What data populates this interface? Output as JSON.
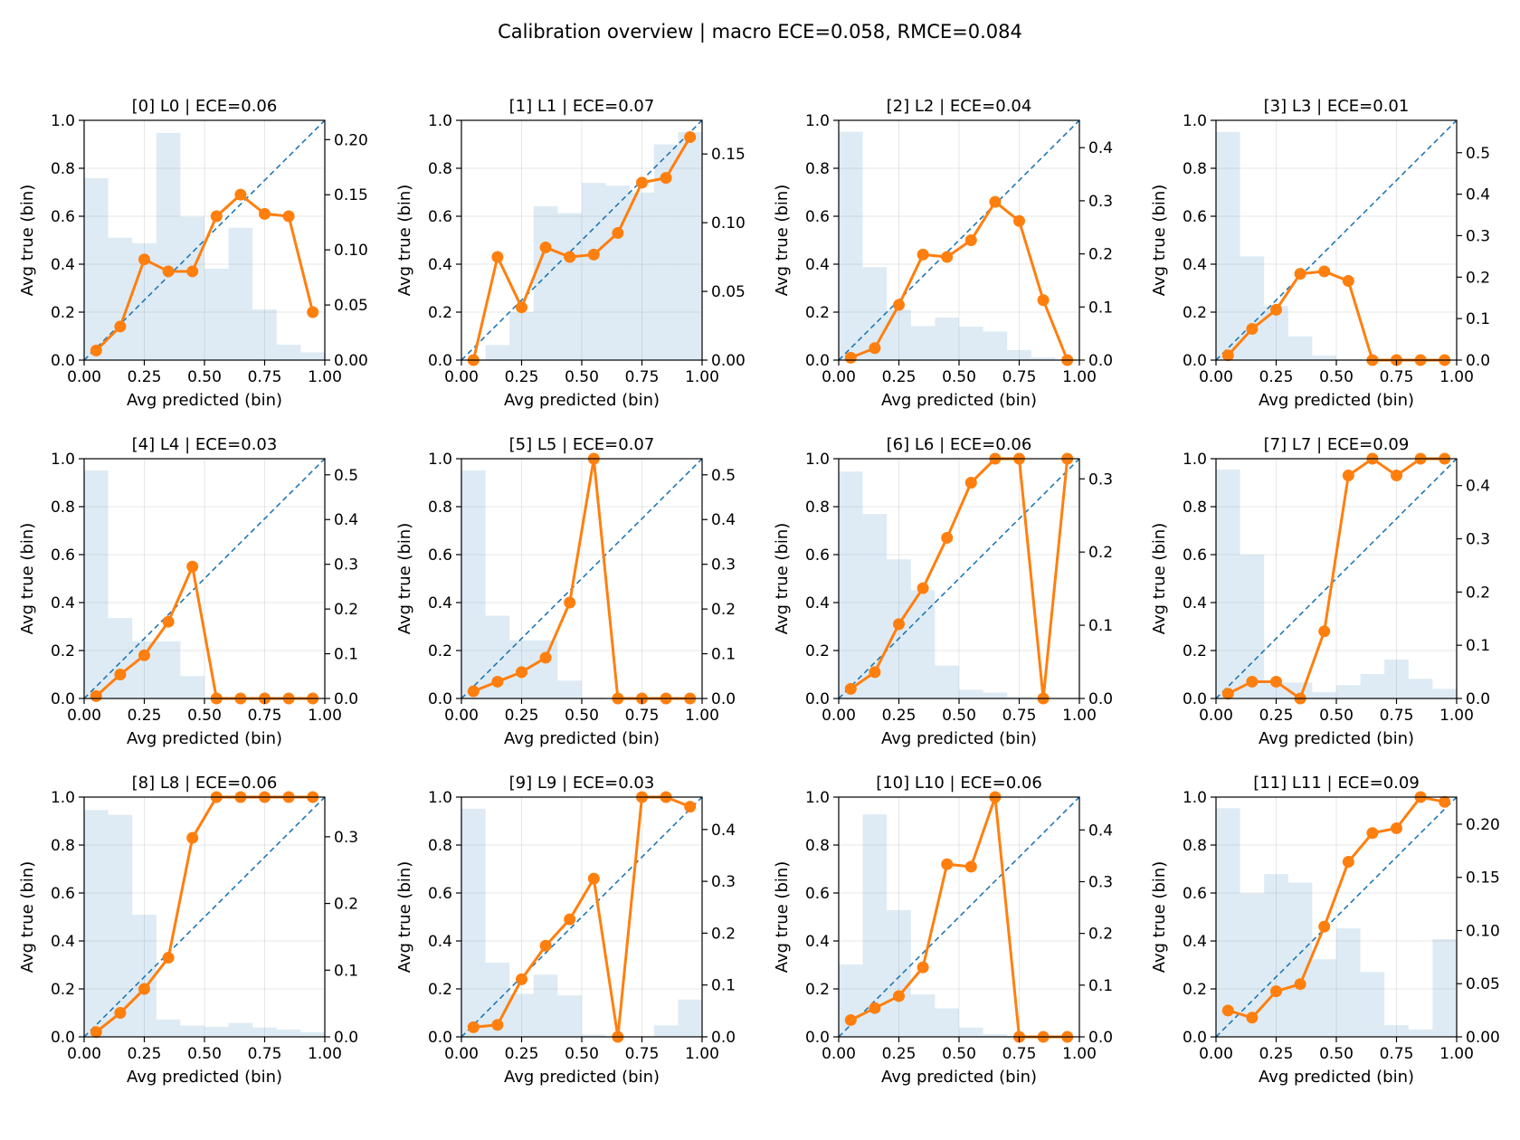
{
  "chart_data": {
    "type": "line",
    "title": "Calibration overview | macro ECE=0.058, RMCE=0.084",
    "xlabel": "Avg predicted (bin)",
    "ylabel": "Avg true (bin)",
    "xlim": [
      0,
      1
    ],
    "ylim": [
      0,
      1
    ],
    "xticks": [
      "0.00",
      "0.25",
      "0.50",
      "0.75",
      "1.00"
    ],
    "yticks": [
      "0.0",
      "0.2",
      "0.4",
      "0.6",
      "0.8",
      "1.0"
    ],
    "grid": true,
    "bin_centers": [
      0.05,
      0.15,
      0.25,
      0.35,
      0.45,
      0.55,
      0.65,
      0.75,
      0.85,
      0.95
    ],
    "colors": {
      "curve": "#ff7f0e",
      "diagonal": "#1f77b4",
      "histogram": "#1f77b4"
    },
    "panels": [
      {
        "title": "[0] L0 | ECE=0.06",
        "y": [
          0.04,
          0.14,
          0.42,
          0.37,
          0.37,
          0.6,
          0.69,
          0.61,
          0.6,
          0.2
        ],
        "hist": [
          0.165,
          0.111,
          0.106,
          0.206,
          0.13,
          0.083,
          0.12,
          0.046,
          0.014,
          0.007
        ],
        "hist_ylim": [
          0,
          0.2175
        ],
        "hist_ticks": [
          0.0,
          0.05,
          0.1,
          0.15,
          0.2
        ],
        "hist_tick_labels": [
          "0.00",
          "0.05",
          "0.10",
          "0.15",
          "0.20"
        ]
      },
      {
        "title": "[1] L1 | ECE=0.07",
        "y": [
          0.0,
          0.43,
          0.22,
          0.47,
          0.43,
          0.44,
          0.53,
          0.74,
          0.76,
          0.93
        ],
        "hist": [
          0.0,
          0.011,
          0.035,
          0.112,
          0.107,
          0.129,
          0.127,
          0.122,
          0.157,
          0.166
        ],
        "hist_ylim": [
          0,
          0.1745
        ],
        "hist_ticks": [
          0.0,
          0.05,
          0.1,
          0.15
        ],
        "hist_tick_labels": [
          "0.00",
          "0.05",
          "0.10",
          "0.15"
        ]
      },
      {
        "title": "[2] L2 | ECE=0.04",
        "y": [
          0.01,
          0.05,
          0.23,
          0.44,
          0.43,
          0.5,
          0.66,
          0.58,
          0.25,
          0.0
        ],
        "hist": [
          0.43,
          0.175,
          0.095,
          0.064,
          0.08,
          0.063,
          0.054,
          0.019,
          0.005,
          0.0
        ],
        "hist_ylim": [
          0,
          0.4515
        ],
        "hist_ticks": [
          0.0,
          0.1,
          0.2,
          0.3,
          0.4
        ],
        "hist_tick_labels": [
          "0.0",
          "0.1",
          "0.2",
          "0.3",
          "0.4"
        ]
      },
      {
        "title": "[3] L3 | ECE=0.01",
        "y": [
          0.02,
          0.13,
          0.21,
          0.36,
          0.37,
          0.33,
          0.0,
          0.0,
          0.0,
          0.0
        ],
        "hist": [
          0.55,
          0.25,
          0.13,
          0.057,
          0.011,
          0.002,
          0.0,
          0.0,
          0.0,
          0.0
        ],
        "hist_ylim": [
          0,
          0.578
        ],
        "hist_ticks": [
          0.0,
          0.1,
          0.2,
          0.3,
          0.4,
          0.5
        ],
        "hist_tick_labels": [
          "0.0",
          "0.1",
          "0.2",
          "0.3",
          "0.4",
          "0.5"
        ]
      },
      {
        "title": "[4] L4 | ECE=0.03",
        "y": [
          0.01,
          0.1,
          0.18,
          0.32,
          0.55,
          0.0,
          0.0,
          0.0,
          0.0,
          0.0
        ],
        "hist": [
          0.51,
          0.18,
          0.128,
          0.128,
          0.05,
          0.002,
          0.0,
          0.0,
          0.0,
          0.0
        ],
        "hist_ylim": [
          0,
          0.536
        ],
        "hist_ticks": [
          0.0,
          0.1,
          0.2,
          0.3,
          0.4,
          0.5
        ],
        "hist_tick_labels": [
          "0.0",
          "0.1",
          "0.2",
          "0.3",
          "0.4",
          "0.5"
        ]
      },
      {
        "title": "[5] L5 | ECE=0.07",
        "y": [
          0.03,
          0.07,
          0.11,
          0.17,
          0.4,
          1.0,
          0.0,
          0.0,
          0.0,
          0.0
        ],
        "hist": [
          0.51,
          0.185,
          0.13,
          0.13,
          0.04,
          0.002,
          0.0,
          0.0,
          0.0,
          0.0
        ],
        "hist_ylim": [
          0,
          0.536
        ],
        "hist_ticks": [
          0.0,
          0.1,
          0.2,
          0.3,
          0.4,
          0.5
        ],
        "hist_tick_labels": [
          "0.0",
          "0.1",
          "0.2",
          "0.3",
          "0.4",
          "0.5"
        ]
      },
      {
        "title": "[6] L6 | ECE=0.06",
        "y": [
          0.04,
          0.11,
          0.31,
          0.46,
          0.67,
          0.9,
          1.0,
          1.0,
          0.0,
          1.0
        ],
        "hist": [
          0.31,
          0.252,
          0.19,
          0.148,
          0.045,
          0.012,
          0.008,
          0.002,
          0.0,
          0.0
        ],
        "hist_ylim": [
          0,
          0.3275
        ],
        "hist_ticks": [
          0.0,
          0.1,
          0.2,
          0.3
        ],
        "hist_tick_labels": [
          "0.0",
          "0.1",
          "0.2",
          "0.3"
        ]
      },
      {
        "title": "[7] L7 | ECE=0.09",
        "y": [
          0.02,
          0.07,
          0.07,
          0.0,
          0.28,
          0.93,
          1.0,
          0.93,
          1.0,
          1.0
        ],
        "hist": [
          0.43,
          0.27,
          0.03,
          0.03,
          0.012,
          0.025,
          0.046,
          0.073,
          0.037,
          0.018
        ],
        "hist_ylim": [
          0,
          0.4505
        ],
        "hist_ticks": [
          0.0,
          0.1,
          0.2,
          0.3,
          0.4
        ],
        "hist_tick_labels": [
          "0.0",
          "0.1",
          "0.2",
          "0.3",
          "0.4"
        ]
      },
      {
        "title": "[8] L8 | ECE=0.06",
        "y": [
          0.02,
          0.1,
          0.2,
          0.33,
          0.83,
          1.0,
          1.0,
          1.0,
          1.0,
          1.0
        ],
        "hist": [
          0.34,
          0.333,
          0.183,
          0.026,
          0.017,
          0.015,
          0.021,
          0.014,
          0.011,
          0.007
        ],
        "hist_ylim": [
          0,
          0.3595
        ],
        "hist_ticks": [
          0.0,
          0.1,
          0.2,
          0.3
        ],
        "hist_tick_labels": [
          "0.0",
          "0.1",
          "0.2",
          "0.3"
        ]
      },
      {
        "title": "[9] L9 | ECE=0.03",
        "y": [
          0.04,
          0.05,
          0.24,
          0.38,
          0.49,
          0.66,
          0.0,
          1.0,
          1.0,
          0.96
        ],
        "hist": [
          0.44,
          0.143,
          0.083,
          0.12,
          0.08,
          0.004,
          0.0,
          0.0,
          0.022,
          0.072
        ],
        "hist_ylim": [
          0,
          0.4625
        ],
        "hist_ticks": [
          0.0,
          0.1,
          0.2,
          0.3,
          0.4
        ],
        "hist_tick_labels": [
          "0.0",
          "0.1",
          "0.2",
          "0.3",
          "0.4"
        ]
      },
      {
        "title": "[10] L10 | ECE=0.06",
        "y": [
          0.07,
          0.12,
          0.17,
          0.29,
          0.72,
          0.71,
          1.0,
          0.0,
          0.0,
          0.0
        ],
        "hist": [
          0.14,
          0.43,
          0.245,
          0.082,
          0.055,
          0.018,
          0.005,
          0.001,
          0.0,
          0.0
        ],
        "hist_ylim": [
          0,
          0.4635
        ],
        "hist_ticks": [
          0.0,
          0.1,
          0.2,
          0.3,
          0.4
        ],
        "hist_tick_labels": [
          "0.0",
          "0.1",
          "0.2",
          "0.3",
          "0.4"
        ]
      },
      {
        "title": "[11] L11 | ECE=0.09",
        "y": [
          0.11,
          0.08,
          0.19,
          0.22,
          0.46,
          0.73,
          0.85,
          0.87,
          1.0,
          0.98
        ],
        "hist": [
          0.215,
          0.135,
          0.153,
          0.145,
          0.073,
          0.102,
          0.061,
          0.011,
          0.007,
          0.092
        ],
        "hist_ylim": [
          0,
          0.2255
        ],
        "hist_ticks": [
          0.0,
          0.05,
          0.1,
          0.15,
          0.2
        ],
        "hist_tick_labels": [
          "0.00",
          "0.05",
          "0.10",
          "0.15",
          "0.20"
        ]
      }
    ]
  }
}
